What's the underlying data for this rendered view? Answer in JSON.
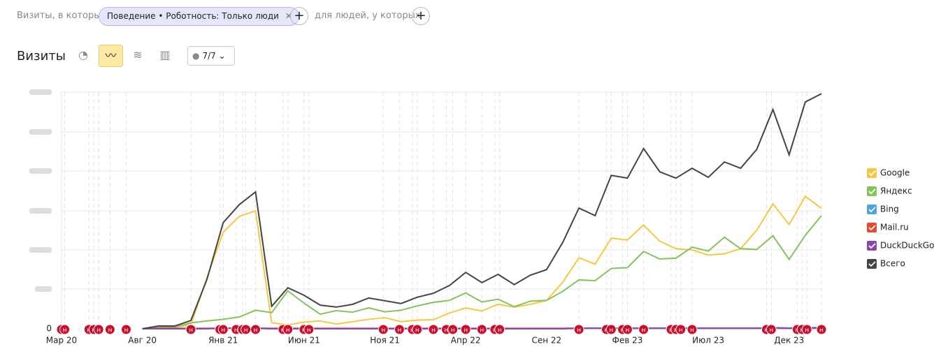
{
  "header": {
    "filter_prefix": "Визиты, в которых",
    "filter_chip": "Поведение • Роботность: Только люди",
    "filter_suffix": "для людей, у которых",
    "title": "Визиты",
    "goals_button": "7/7"
  },
  "chart_data": {
    "type": "line",
    "categories": [
      "Мар 20",
      null,
      null,
      null,
      null,
      "Авг 20",
      null,
      null,
      null,
      null,
      "Янв 21",
      null,
      null,
      null,
      null,
      "Июн 21",
      null,
      null,
      null,
      null,
      "Ноя 21",
      null,
      null,
      null,
      null,
      "Апр 22",
      null,
      null,
      null,
      null,
      "Сен 22",
      null,
      null,
      null,
      null,
      "Фев 23",
      null,
      null,
      null,
      null,
      "Июл 23",
      null,
      null,
      null,
      null,
      "Дек 23",
      null,
      null
    ],
    "ylim": [
      0,
      6
    ],
    "yticks": [
      0
    ],
    "legend": "right",
    "series": [
      {
        "name": "Google",
        "color": "#f5c842",
        "values": [
          null,
          null,
          null,
          null,
          null,
          0,
          0.04,
          0.04,
          0.1,
          1.3,
          2.45,
          2.85,
          2.99,
          0.15,
          0.1,
          0.17,
          0.2,
          0.12,
          0.18,
          0.24,
          0.28,
          0.18,
          0.22,
          0.23,
          0.4,
          0.53,
          0.45,
          0.62,
          0.55,
          0.62,
          0.72,
          1.18,
          1.8,
          1.64,
          2.3,
          2.25,
          2.63,
          2.22,
          2.03,
          2.0,
          1.87,
          1.9,
          2.03,
          2.5,
          3.17,
          2.64,
          3.36,
          3.05
        ]
      },
      {
        "name": "Яндекс",
        "color": "#82c45a",
        "values": [
          null,
          null,
          null,
          null,
          null,
          0,
          0.03,
          0.04,
          0.15,
          0.2,
          0.24,
          0.3,
          0.47,
          0.41,
          0.96,
          0.65,
          0.37,
          0.46,
          0.42,
          0.53,
          0.43,
          0.47,
          0.58,
          0.67,
          0.72,
          0.91,
          0.68,
          0.75,
          0.56,
          0.7,
          0.72,
          0.95,
          1.24,
          1.22,
          1.53,
          1.55,
          1.96,
          1.77,
          1.79,
          2.07,
          1.97,
          2.32,
          2.03,
          2.01,
          2.36,
          1.76,
          2.37,
          2.87
        ]
      },
      {
        "name": "Bing",
        "color": "#4ea3dc",
        "values": [
          null,
          null,
          null,
          null,
          null,
          0,
          0.01,
          0.01,
          0.01,
          0.01,
          0.02,
          0.02,
          0.02,
          0.01,
          0.01,
          0.01,
          0.01,
          0.01,
          0.01,
          0.01,
          0.01,
          0.01,
          0.01,
          0.01,
          0.01,
          0.01,
          0.01,
          0.01,
          0.01,
          0.01,
          0.01,
          0.01,
          0.02,
          0.02,
          0.02,
          0.02,
          0.02,
          0.02,
          0.02,
          0.02,
          0.02,
          0.02,
          0.02,
          0.02,
          0.03,
          0.02,
          0.03,
          0.03
        ]
      },
      {
        "name": "Mail.ru",
        "color": "#e8482b",
        "values": [
          null,
          null,
          null,
          null,
          null,
          0,
          0.01,
          0.01,
          0.01,
          0.01,
          0.01,
          0.01,
          0.01,
          0.01,
          0.01,
          0.01,
          0.01,
          0.01,
          0.01,
          0.01,
          0.01,
          0.01,
          0.01,
          0.01,
          0.01,
          0.01,
          0.01,
          0.01,
          0.01,
          0.01,
          0.01,
          0.01,
          0.01,
          0.01,
          0.01,
          0.01,
          0.01,
          0.01,
          0.01,
          0.01,
          0.01,
          0.01,
          0.01,
          0.01,
          0.01,
          0.01,
          0.01,
          0.01
        ]
      },
      {
        "name": "DuckDuckGo",
        "color": "#8e44ad",
        "values": [
          null,
          null,
          null,
          null,
          null,
          0,
          0,
          0,
          0,
          0,
          0.01,
          0.01,
          0.01,
          0,
          0,
          0,
          0,
          0,
          0,
          0,
          0,
          0,
          0,
          0,
          0,
          0,
          0,
          0,
          0,
          0,
          0,
          0,
          0.01,
          0.01,
          0.01,
          0.01,
          0.01,
          0.01,
          0.01,
          0.01,
          0.01,
          0.01,
          0.01,
          0.01,
          0.02,
          0.01,
          0.02,
          0.02
        ]
      },
      {
        "name": "Всего",
        "color": "#444444",
        "values": [
          null,
          null,
          null,
          null,
          null,
          0,
          0.07,
          0.07,
          0.21,
          1.26,
          2.69,
          3.15,
          3.47,
          0.57,
          1.04,
          0.85,
          0.6,
          0.55,
          0.62,
          0.78,
          0.71,
          0.64,
          0.8,
          0.9,
          1.1,
          1.43,
          1.17,
          1.38,
          1.12,
          1.36,
          1.5,
          2.19,
          3.06,
          2.87,
          3.89,
          3.82,
          4.57,
          3.98,
          3.82,
          4.07,
          3.84,
          4.23,
          4.07,
          4.55,
          5.56,
          4.41,
          5.75,
          5.96
        ]
      }
    ],
    "annotations": {
      "label": "н",
      "x": [
        0,
        0.2,
        1.7,
        2,
        2.3,
        3,
        4,
        8,
        9.8,
        10,
        10.8,
        11.2,
        11.4,
        12,
        13.7,
        14,
        15,
        15.3,
        19.9,
        20.9,
        21.7,
        22,
        23,
        23.8,
        24.2,
        25,
        26,
        26.8,
        27.1,
        32,
        33.7,
        34,
        34.7,
        35,
        36,
        37.7,
        38,
        38.3,
        39,
        43.6,
        43.9,
        45.5,
        45.8,
        46.1,
        47
      ]
    }
  }
}
